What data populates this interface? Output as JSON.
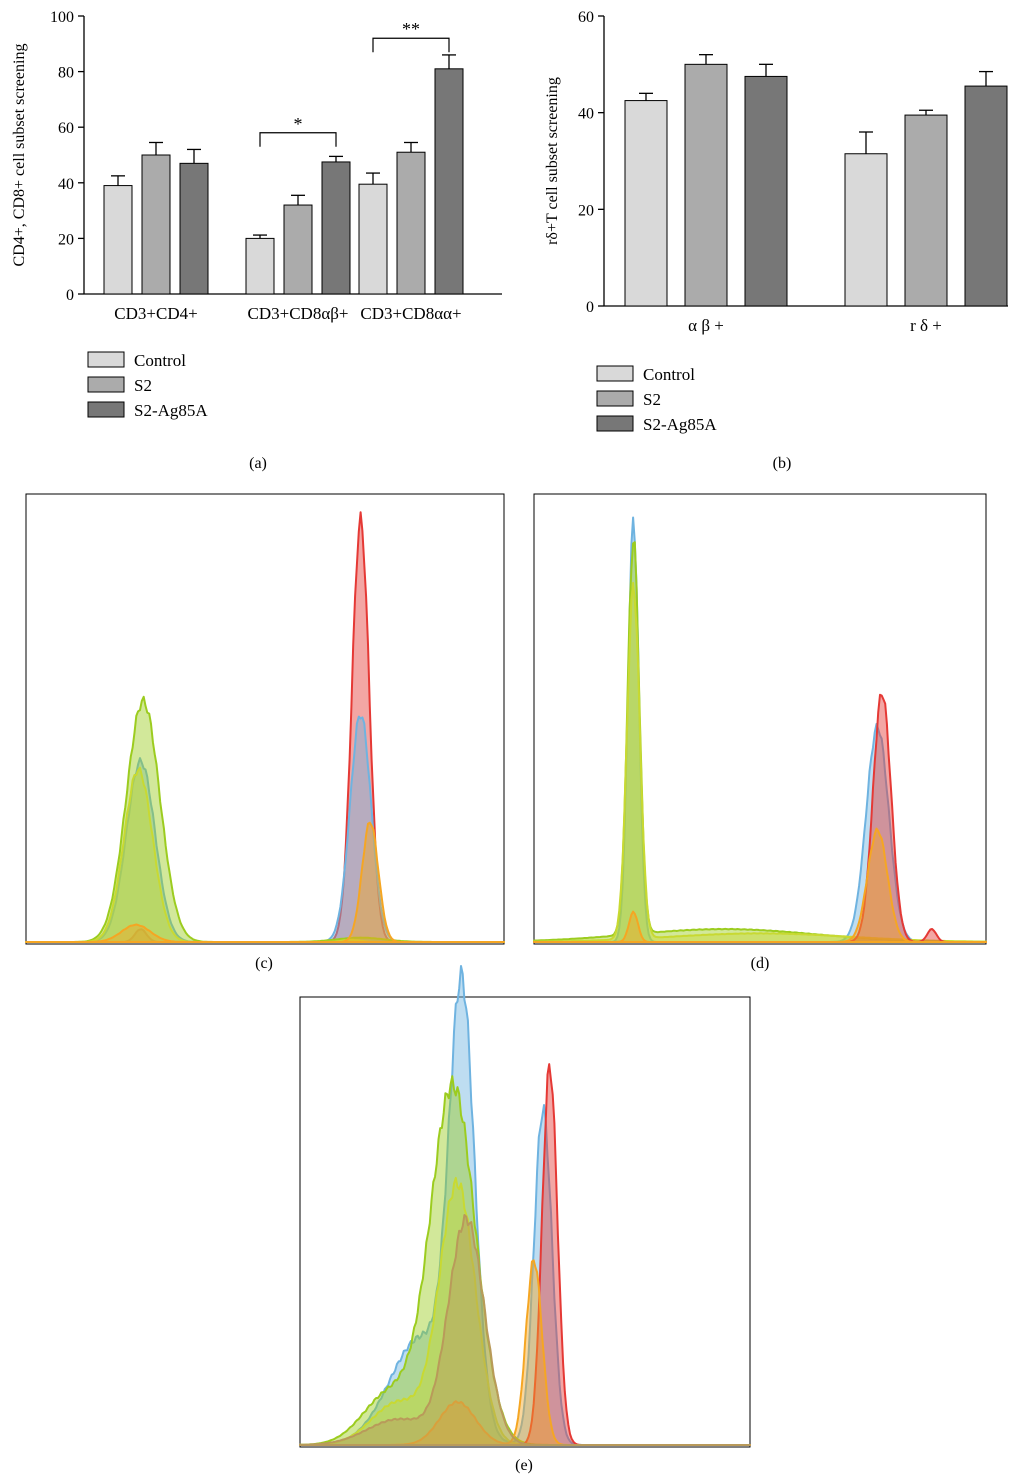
{
  "colors": {
    "control": "#d9d9d9",
    "s2": "#ababab",
    "s2ag85a": "#777777",
    "red": "#e53935",
    "blue": "#6fb3e0",
    "orange": "#f5a623",
    "lime": "#9ccc1f",
    "yellowgreen": "#c8d932"
  },
  "panels": {
    "a": "(a)",
    "b": "(b)",
    "c": "(c)",
    "d": "(d)",
    "e": "(e)"
  },
  "chart_data": [
    {
      "type": "bar",
      "ylabel": "CD4+, CD8+ cell subset screening",
      "ylim": [
        0,
        100
      ],
      "yticks": [
        "0",
        "20",
        "40",
        "60",
        "80",
        "100"
      ],
      "categories": [
        "CD3+CD4+",
        "CD3+CD8αβ+",
        "CD3+CD8αα+"
      ],
      "series": [
        {
          "name": "Control",
          "values": [
            39,
            20,
            39.5
          ],
          "errors": [
            3.5,
            1.2,
            4
          ]
        },
        {
          "name": "S2",
          "values": [
            50,
            32,
            51
          ],
          "errors": [
            4.5,
            3.5,
            3.5
          ]
        },
        {
          "name": "S2-Ag85A",
          "values": [
            47,
            47.5,
            81
          ],
          "errors": [
            5,
            2,
            5
          ]
        }
      ],
      "significance": [
        {
          "category": "CD3+CD8αβ+",
          "label": "*",
          "level": 58
        },
        {
          "category": "CD3+CD8αα+",
          "label": "**",
          "level": 92
        }
      ],
      "legend": "bottom-left"
    },
    {
      "type": "bar",
      "ylabel": "rδ+T cell subset screening",
      "ylim": [
        0,
        60
      ],
      "yticks": [
        "0",
        "20",
        "40",
        "60"
      ],
      "categories": [
        "α β +",
        "r δ +"
      ],
      "series": [
        {
          "name": "Control",
          "values": [
            42.5,
            31.5
          ],
          "errors": [
            1.5,
            4.5
          ]
        },
        {
          "name": "S2",
          "values": [
            50,
            39.5
          ],
          "errors": [
            2,
            1
          ]
        },
        {
          "name": "S2-Ag85A",
          "values": [
            47.5,
            45.5
          ],
          "errors": [
            2.5,
            3
          ]
        }
      ],
      "legend": "bottom-left"
    },
    {
      "type": "area",
      "panel": "(c)",
      "xlim": [
        0,
        1
      ],
      "ylim": [
        0,
        1
      ],
      "series": [
        {
          "color": "red",
          "peaks": [
            [
              0.24,
              0.012,
              0.03
            ],
            [
              0.7,
              0.018,
              0.98
            ]
          ]
        },
        {
          "color": "blue",
          "peaks": [
            [
              0.24,
              0.03,
              0.42
            ],
            [
              0.7,
              0.022,
              0.53
            ]
          ]
        },
        {
          "color": "lime",
          "peaks": [
            [
              0.245,
              0.035,
              0.56
            ],
            [
              0.7,
              0.05,
              0.01
            ]
          ]
        },
        {
          "color": "yellowgreen",
          "peaks": [
            [
              0.235,
              0.03,
              0.4
            ],
            [
              0.68,
              0.02,
              0.005
            ]
          ]
        },
        {
          "color": "orange",
          "peaks": [
            [
              0.23,
              0.03,
              0.04
            ],
            [
              0.72,
              0.017,
              0.28
            ]
          ]
        }
      ]
    },
    {
      "type": "area",
      "panel": "(d)",
      "xlim": [
        0,
        1
      ],
      "ylim": [
        0,
        1
      ],
      "series": [
        {
          "color": "blue",
          "peaks": [
            [
              0.22,
              0.012,
              0.98
            ],
            [
              0.76,
              0.025,
              0.5
            ]
          ]
        },
        {
          "color": "lime",
          "peaks": [
            [
              0.22,
              0.013,
              0.92
            ],
            [
              0.42,
              0.2,
              0.03
            ]
          ]
        },
        {
          "color": "yellowgreen",
          "peaks": [
            [
              0.22,
              0.014,
              0.82
            ],
            [
              0.5,
              0.2,
              0.02
            ]
          ]
        },
        {
          "color": "red",
          "peaks": [
            [
              0.77,
              0.02,
              0.58
            ],
            [
              0.88,
              0.01,
              0.03
            ]
          ]
        },
        {
          "color": "orange",
          "peaks": [
            [
              0.22,
              0.01,
              0.07
            ],
            [
              0.76,
              0.022,
              0.26
            ]
          ]
        }
      ]
    },
    {
      "type": "area",
      "panel": "(e)",
      "xlim": [
        0,
        1
      ],
      "ylim": [
        0,
        1
      ],
      "series": [
        {
          "color": "blue",
          "peaks": [
            [
              0.36,
              0.028,
              0.98
            ],
            [
              0.27,
              0.07,
              0.25
            ],
            [
              0.54,
              0.02,
              0.78
            ]
          ]
        },
        {
          "color": "lime",
          "peaks": [
            [
              0.34,
              0.05,
              0.83
            ],
            [
              0.2,
              0.06,
              0.12
            ]
          ]
        },
        {
          "color": "yellowgreen",
          "peaks": [
            [
              0.35,
              0.04,
              0.6
            ],
            [
              0.22,
              0.06,
              0.1
            ]
          ]
        },
        {
          "color": "red",
          "peaks": [
            [
              0.555,
              0.017,
              0.88
            ]
          ]
        },
        {
          "color": "orange",
          "peaks": [
            [
              0.52,
              0.018,
              0.43
            ],
            [
              0.35,
              0.04,
              0.1
            ]
          ]
        },
        {
          "color": "brown",
          "peaks": [
            [
              0.37,
              0.04,
              0.52
            ],
            [
              0.22,
              0.07,
              0.06
            ]
          ]
        }
      ]
    }
  ]
}
